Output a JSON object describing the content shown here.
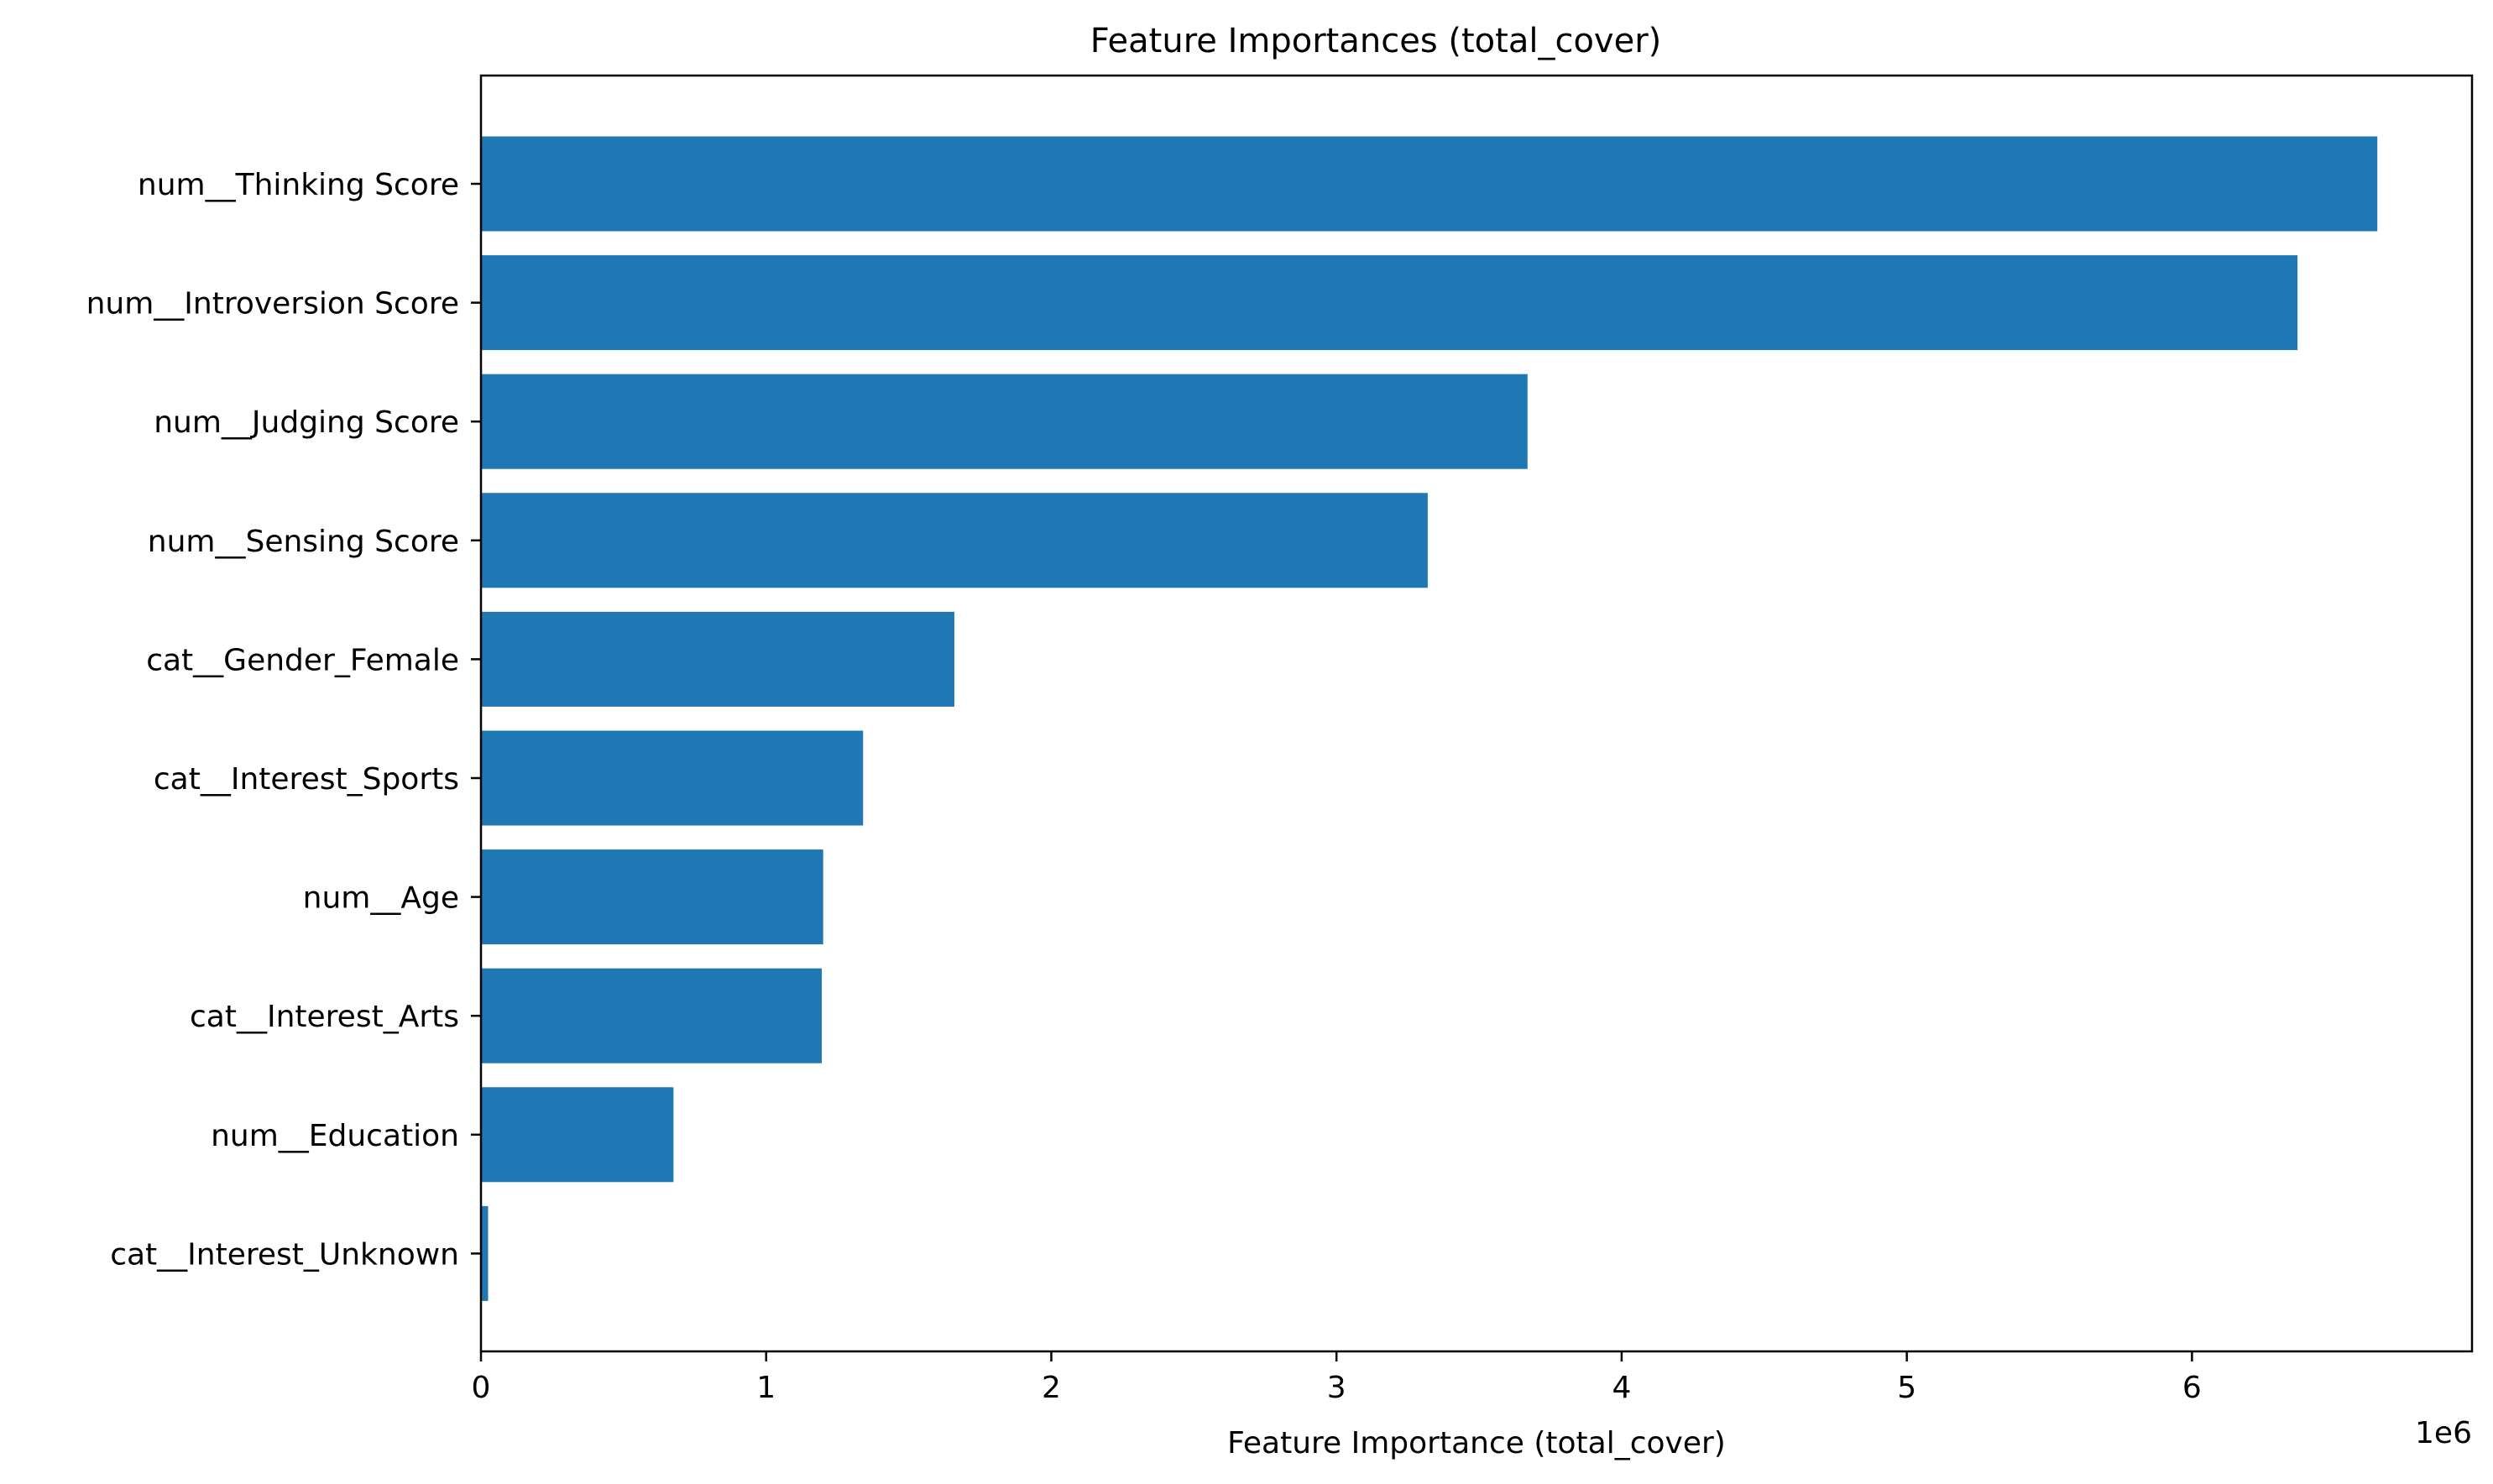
{
  "chart_data": {
    "type": "bar",
    "orientation": "horizontal",
    "title": "Feature Importances (total_cover)",
    "xlabel": "Feature Importance (total_cover)",
    "ylabel": "",
    "x_offset_label": "1e6",
    "x_scale_factor": 1000000,
    "xlim": [
      0,
      6982000
    ],
    "xticks": [
      0,
      1000000,
      2000000,
      3000000,
      4000000,
      5000000,
      6000000
    ],
    "xtick_labels": [
      "0",
      "1",
      "2",
      "3",
      "4",
      "5",
      "6"
    ],
    "grid": false,
    "bar_color": "#1f77b4",
    "categories": [
      "num__Thinking Score",
      "num__Introversion Score",
      "num__Judging Score",
      "num__Sensing Score",
      "cat__Gender_Female",
      "cat__Interest_Sports",
      "num__Age",
      "cat__Interest_Arts",
      "num__Education",
      "cat__Interest_Unknown"
    ],
    "values": [
      6650000,
      6370000,
      3670000,
      3320000,
      1660000,
      1340000,
      1200000,
      1195000,
      675000,
      25000
    ]
  }
}
